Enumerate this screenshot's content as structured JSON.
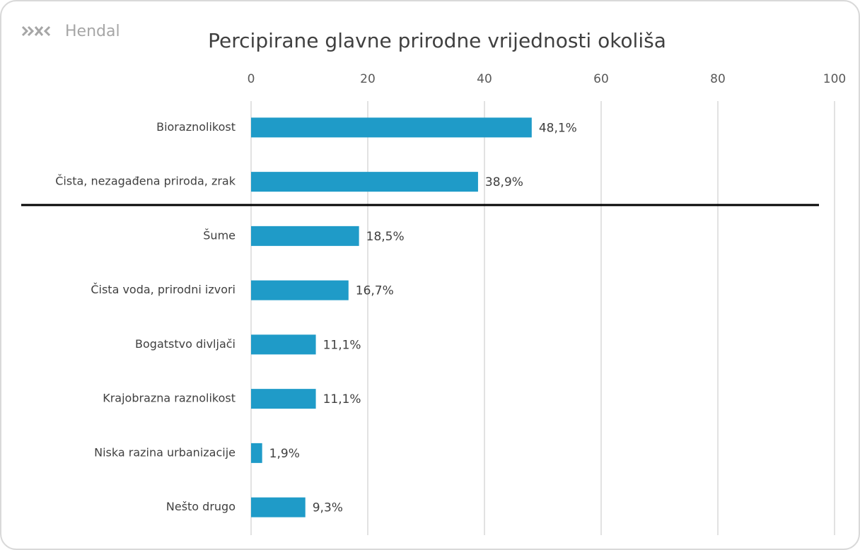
{
  "brand": "Hendal",
  "chart_data": {
    "type": "bar",
    "orientation": "horizontal",
    "title": "Percipirane glavne prirodne vrijednosti okoliša",
    "categories": [
      "Bioraznolikost",
      "Čista, nezagađena priroda, zrak",
      "Šume",
      "Čista voda, prirodni izvori",
      "Bogatstvo divljači",
      "Krajobrazna raznolikost",
      "Niska razina urbanizacije",
      "Nešto drugo"
    ],
    "values": [
      48.1,
      38.9,
      18.5,
      16.7,
      11.1,
      11.1,
      1.9,
      9.3
    ],
    "value_labels": [
      "48,1%",
      "38,9%",
      "18,5%",
      "16,7%",
      "11,1%",
      "11,1%",
      "1,9%",
      "9,3%"
    ],
    "color": "#1f9bc8",
    "xlim": [
      0,
      100
    ],
    "xticks": [
      0,
      20,
      40,
      60,
      80,
      100
    ],
    "grid": true
  }
}
